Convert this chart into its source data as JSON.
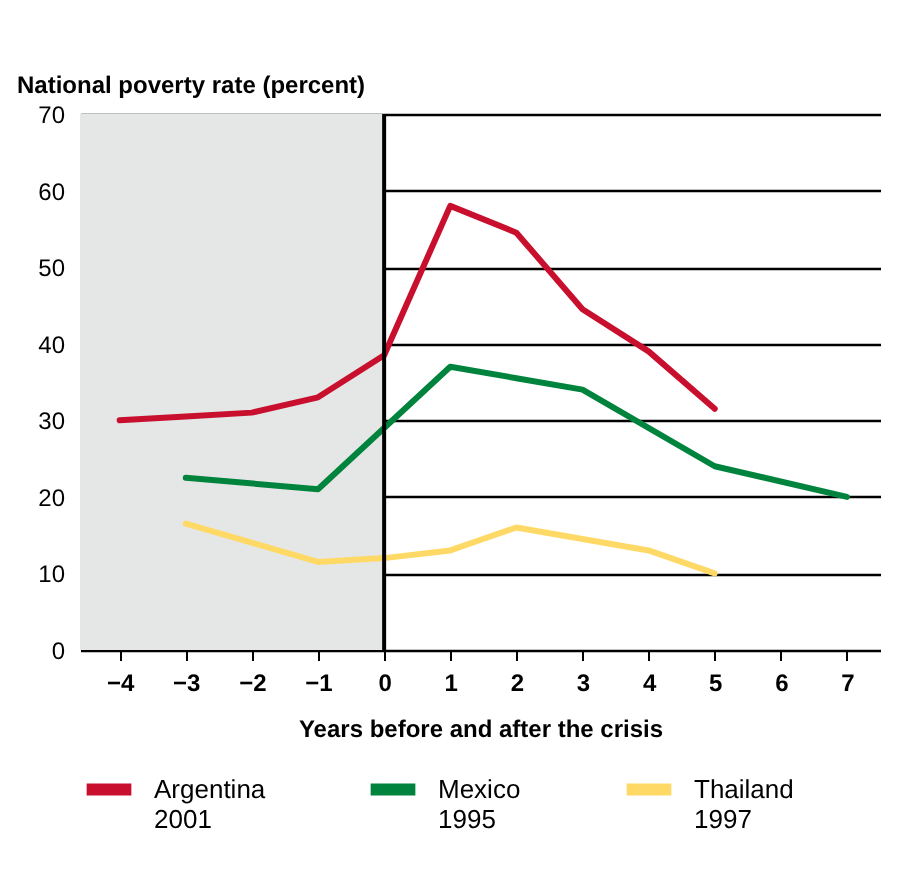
{
  "chart_data": {
    "type": "line",
    "ylabel": "National poverty rate (percent)",
    "xlabel": "Years before and after the crisis",
    "xlim": [
      -4.6,
      7.5
    ],
    "xticks": [
      {
        "value": -4,
        "label": "−4"
      },
      {
        "value": -3,
        "label": "−3"
      },
      {
        "value": -2,
        "label": "−2"
      },
      {
        "value": -1,
        "label": "−1"
      },
      0,
      1,
      2,
      3,
      4,
      5,
      6,
      7
    ],
    "ylim": [
      0,
      70
    ],
    "yticks": [
      0,
      10,
      20,
      30,
      40,
      50,
      60,
      70
    ],
    "grid": "y",
    "legend": "bottom",
    "marker": "none",
    "line_style": "solid",
    "bands": [
      {
        "axis": "x",
        "from": -4.6,
        "to": 0,
        "color": "#e5e7e6"
      }
    ],
    "ref_lines": [
      {
        "axis": "x",
        "value": 0,
        "color": "#000000"
      }
    ],
    "series": [
      {
        "name": "Argentina\n2001",
        "color": "#c8102e",
        "x": [
          -4,
          -3,
          -2,
          -1,
          0,
          1,
          2,
          3,
          4,
          5
        ],
        "values": [
          30,
          30.5,
          31,
          33,
          38.5,
          58,
          54.5,
          44.5,
          39,
          31.5
        ]
      },
      {
        "name": "Mexico\n1995",
        "color": "#00843d",
        "x": [
          -3,
          -1,
          1,
          2,
          3,
          5,
          7
        ],
        "values": [
          22.5,
          21,
          37,
          35.5,
          34,
          24,
          20
        ]
      },
      {
        "name": "Thailand\n1997",
        "color": "#ffd966",
        "x": [
          -3,
          -1,
          0,
          1,
          2,
          3,
          4,
          5
        ],
        "values": [
          16.5,
          11.5,
          12,
          13,
          16,
          14.5,
          13,
          10
        ]
      }
    ]
  }
}
